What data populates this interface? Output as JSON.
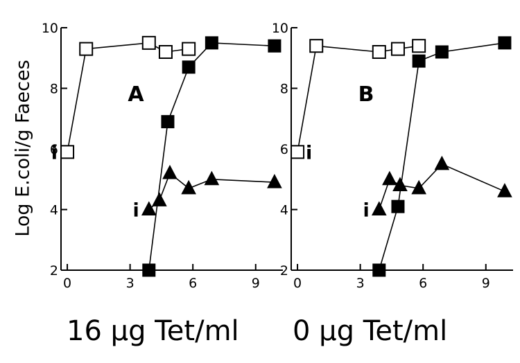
{
  "chart_data": [
    {
      "type": "line",
      "panel_label": "A",
      "xlabel": "16 µg Tet/ml",
      "ylabel": "Log E.coli/g Faeces",
      "x_ticks": [
        "0",
        "3",
        "6",
        "9"
      ],
      "y_ticks": [
        "2",
        "4",
        "6",
        "8",
        "10"
      ],
      "xlim": [
        -0.3,
        10.3
      ],
      "ylim": [
        2,
        10
      ],
      "series": [
        {
          "marker": "open-square",
          "x": [
            0,
            0.9,
            3.9,
            4.7,
            5.8
          ],
          "y": [
            5.9,
            9.3,
            9.5,
            9.2,
            9.3
          ],
          "inoculation_point": 0
        },
        {
          "marker": "filled-square",
          "x": [
            3.9,
            4.8,
            5.8,
            6.9,
            9.9
          ],
          "y": [
            2.0,
            6.9,
            8.7,
            9.5,
            9.4
          ]
        },
        {
          "marker": "filled-triangle",
          "x": [
            3.9,
            4.4,
            4.9,
            5.8,
            6.9,
            9.9
          ],
          "y": [
            4.0,
            4.3,
            5.2,
            4.7,
            5.0,
            4.9
          ],
          "inoculation_point": 0
        }
      ],
      "annotations": [
        "i",
        "i"
      ]
    },
    {
      "type": "line",
      "panel_label": "B",
      "xlabel": "0 µg Tet/ml",
      "x_ticks": [
        "0",
        "3",
        "6",
        "9"
      ],
      "y_ticks": [
        "2",
        "4",
        "6",
        "8",
        "10"
      ],
      "xlim": [
        -0.3,
        10.3
      ],
      "ylim": [
        2,
        10
      ],
      "series": [
        {
          "marker": "open-square",
          "x": [
            0,
            0.9,
            3.9,
            4.8,
            5.8
          ],
          "y": [
            5.9,
            9.4,
            9.2,
            9.3,
            9.4
          ],
          "inoculation_point": 0
        },
        {
          "marker": "filled-square",
          "x": [
            3.9,
            4.8,
            5.8,
            6.9,
            9.9
          ],
          "y": [
            2.0,
            4.1,
            8.9,
            9.2,
            9.5
          ]
        },
        {
          "marker": "filled-triangle",
          "x": [
            3.9,
            4.4,
            4.9,
            5.8,
            6.9,
            9.9
          ],
          "y": [
            4.0,
            5.0,
            4.8,
            4.7,
            5.5,
            4.6
          ],
          "inoculation_point": 0
        }
      ],
      "annotations": [
        "i",
        "i"
      ]
    }
  ]
}
